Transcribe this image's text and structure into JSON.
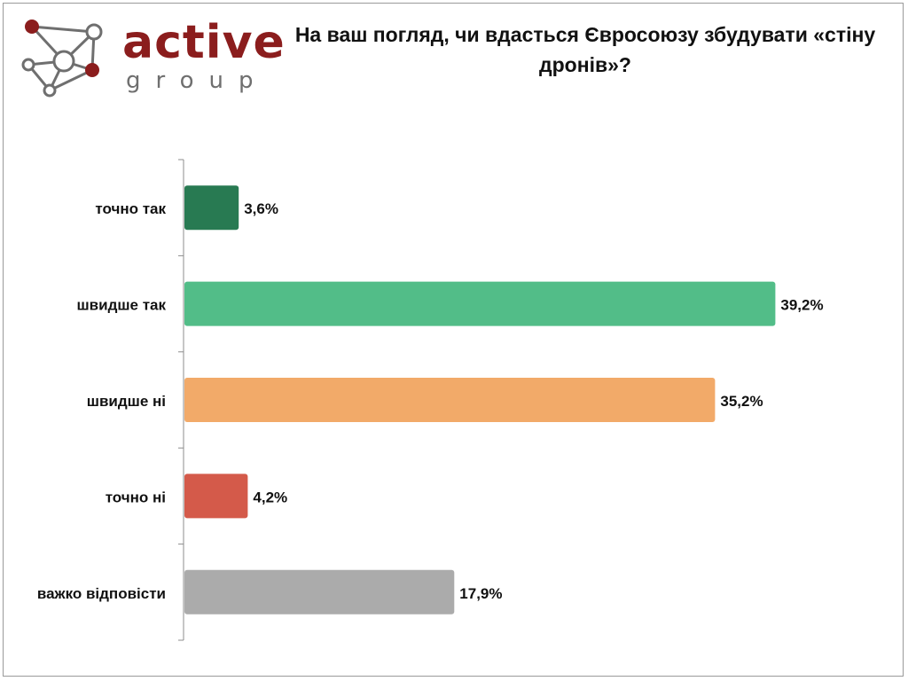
{
  "logo": {
    "word": "active",
    "sub": "group",
    "icon": "network-nodes-icon"
  },
  "chart_data": {
    "type": "bar",
    "orientation": "horizontal",
    "title": "На ваш погляд, чи вдасться Євросоюзу збудувати «стіну дронів»?",
    "categories": [
      "точно так",
      "швидше так",
      "швидше ні",
      "точно ні",
      "важко відповісти"
    ],
    "values": [
      3.6,
      39.2,
      35.2,
      4.2,
      17.9
    ],
    "value_labels": [
      "3,6%",
      "39,2%",
      "35,2%",
      "4,2%",
      "17,9%"
    ],
    "colors": [
      "#287a52",
      "#52bd88",
      "#f2aa69",
      "#d45a4a",
      "#ababab"
    ],
    "xlabel": "",
    "ylabel": "",
    "xlim": [
      0,
      100
    ],
    "grid": false,
    "legend": "none"
  }
}
